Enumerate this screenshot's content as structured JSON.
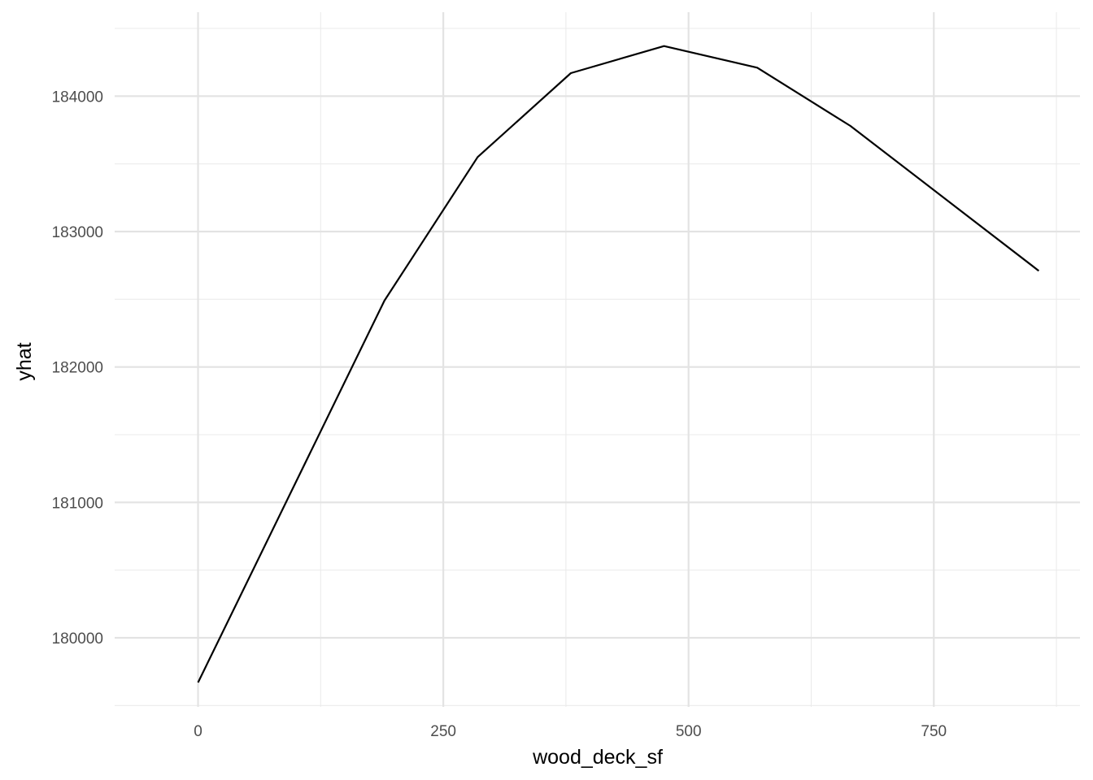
{
  "chart_data": {
    "type": "line",
    "title": "",
    "xlabel": "wood_deck_sf",
    "ylabel": "yhat",
    "xlim": [
      -85,
      899
    ],
    "ylim": [
      179490,
      184620
    ],
    "x_ticks": [
      0,
      250,
      500,
      750
    ],
    "x_tick_labels": [
      "0",
      "250",
      "500",
      "750"
    ],
    "x_minor_ticks": [
      125,
      375,
      625,
      875
    ],
    "y_ticks": [
      180000,
      181000,
      182000,
      183000,
      184000
    ],
    "y_tick_labels": [
      "180000",
      "181000",
      "182000",
      "183000",
      "184000"
    ],
    "y_minor_ticks": [
      179500,
      180500,
      181500,
      182500,
      183500,
      184500
    ],
    "grid": true,
    "legend": "none",
    "series": [
      {
        "x": [
          0,
          190,
          285,
          380,
          475,
          570,
          665,
          857
        ],
        "y": [
          179670,
          182490,
          183550,
          184170,
          184370,
          184210,
          183780,
          182710
        ],
        "color": "#000000"
      }
    ]
  }
}
